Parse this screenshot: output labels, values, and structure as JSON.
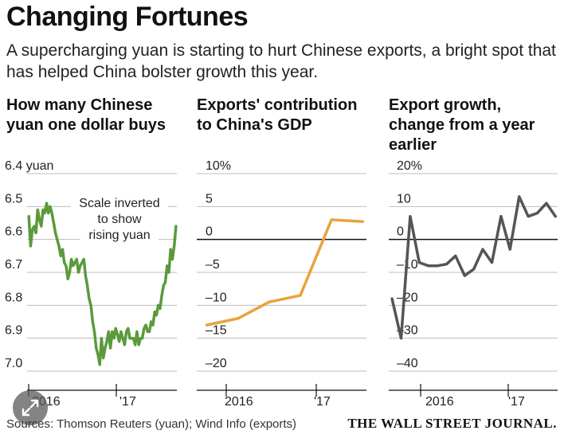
{
  "header": {
    "title": "Changing Fortunes",
    "subtitle": "A supercharging yuan is starting to hurt Chinese exports, a bright spot that has helped China bolster growth this year."
  },
  "footer": {
    "sources": "Sources: Thomson Reuters (yuan); Wind Info (exports)",
    "publisher": "THE WALL STREET JOURNAL."
  },
  "ui": {
    "expand_icon": "expand-arrows-icon"
  },
  "chart_data": [
    {
      "type": "line",
      "title": "How many Chinese yuan one dollar buys",
      "color": "#5a9a3c",
      "y_inverted": true,
      "ylim": [
        6.4,
        7.0
      ],
      "y_ticks": [
        6.4,
        6.5,
        6.6,
        6.7,
        6.8,
        6.9,
        7.0
      ],
      "y_tick_labels": [
        "6.4 yuan",
        "6.5",
        "6.6",
        "6.7",
        "6.8",
        "6.9",
        "7.0"
      ],
      "x_tick_labels": [
        "2016",
        "'17"
      ],
      "annotation": [
        "Scale inverted",
        "to show",
        "rising yuan"
      ],
      "series": [
        {
          "x": [
            2016.0,
            2016.02,
            2016.04,
            2016.06,
            2016.08,
            2016.1,
            2016.12,
            2016.14,
            2016.16,
            2016.18,
            2016.2,
            2016.22,
            2016.24,
            2016.26,
            2016.28,
            2016.3,
            2016.32,
            2016.34,
            2016.36,
            2016.38,
            2016.4,
            2016.42,
            2016.44,
            2016.46,
            2016.48,
            2016.5,
            2016.52,
            2016.54,
            2016.56,
            2016.58,
            2016.6,
            2016.62,
            2016.64,
            2016.66,
            2016.68,
            2016.7,
            2016.72,
            2016.74,
            2016.76,
            2016.78,
            2016.8,
            2016.82,
            2016.84,
            2016.86,
            2016.88,
            2016.9,
            2016.92,
            2016.94,
            2016.96,
            2016.98,
            2017.0,
            2017.02,
            2017.04,
            2017.06,
            2017.08,
            2017.1,
            2017.12,
            2017.14,
            2017.16,
            2017.18,
            2017.2,
            2017.22,
            2017.24,
            2017.26,
            2017.28,
            2017.3,
            2017.32,
            2017.34,
            2017.36,
            2017.38,
            2017.4,
            2017.42,
            2017.44,
            2017.46,
            2017.48,
            2017.5,
            2017.52,
            2017.54,
            2017.56,
            2017.58,
            2017.6,
            2017.62,
            2017.64,
            2017.66
          ],
          "y": [
            6.53,
            6.62,
            6.57,
            6.56,
            6.58,
            6.51,
            6.54,
            6.56,
            6.51,
            6.52,
            6.49,
            6.52,
            6.5,
            6.52,
            6.55,
            6.58,
            6.6,
            6.62,
            6.65,
            6.63,
            6.67,
            6.68,
            6.72,
            6.7,
            6.66,
            6.68,
            6.67,
            6.66,
            6.7,
            6.68,
            6.67,
            6.66,
            6.71,
            6.74,
            6.78,
            6.8,
            6.85,
            6.88,
            6.93,
            6.95,
            6.98,
            6.9,
            6.96,
            6.93,
            6.91,
            6.88,
            6.93,
            6.88,
            6.9,
            6.87,
            6.89,
            6.91,
            6.88,
            6.9,
            6.92,
            6.88,
            6.87,
            6.9,
            6.9,
            6.9,
            6.92,
            6.88,
            6.92,
            6.9,
            6.9,
            6.87,
            6.86,
            6.88,
            6.88,
            6.85,
            6.86,
            6.82,
            6.83,
            6.8,
            6.81,
            6.77,
            6.74,
            6.73,
            6.68,
            6.7,
            6.63,
            6.66,
            6.62,
            6.56
          ]
        }
      ],
      "xlim": [
        2015.98,
        2017.67
      ]
    },
    {
      "type": "line",
      "title": "Exports' contribution to China's GDP",
      "color": "#e8a33c",
      "ylim": [
        -20,
        10
      ],
      "y_ticks": [
        10,
        5,
        0,
        -5,
        -10,
        -15,
        -20
      ],
      "y_tick_labels": [
        "10%",
        "5",
        "0",
        "–5",
        "–10",
        "–15",
        "–20"
      ],
      "x_tick_labels": [
        "2016",
        "'17"
      ],
      "series": [
        {
          "x": [
            2016.0,
            2016.25,
            2016.5,
            2016.75,
            2017.0,
            2017.25
          ],
          "y": [
            -13.0,
            -12.0,
            -9.5,
            -8.5,
            3.0,
            2.7
          ]
        }
      ],
      "xlim": [
        2015.92,
        2017.28
      ]
    },
    {
      "type": "line",
      "title": "Export growth, change from a year earlier",
      "color": "#555555",
      "ylim": [
        -40,
        20
      ],
      "y_ticks": [
        20,
        10,
        0,
        -10,
        -20,
        -30,
        -40
      ],
      "y_tick_labels": [
        "20%",
        "10",
        "0",
        "–10",
        "–20",
        "–30",
        "–40"
      ],
      "x_tick_labels": [
        "2016",
        "'17"
      ],
      "series": [
        {
          "x": [
            2016.0,
            2016.083,
            2016.167,
            2016.25,
            2016.333,
            2016.417,
            2016.5,
            2016.583,
            2016.667,
            2016.75,
            2016.833,
            2016.917,
            2017.0,
            2017.083,
            2017.167,
            2017.25,
            2017.333,
            2017.417,
            2017.5
          ],
          "y": [
            -18,
            -30,
            7,
            -7,
            -8,
            -8,
            -7.5,
            -5,
            -11,
            -9,
            -3,
            -7,
            7,
            -3,
            13,
            7,
            8,
            11,
            7
          ]
        }
      ],
      "xlim": [
        2015.97,
        2017.52
      ]
    }
  ]
}
